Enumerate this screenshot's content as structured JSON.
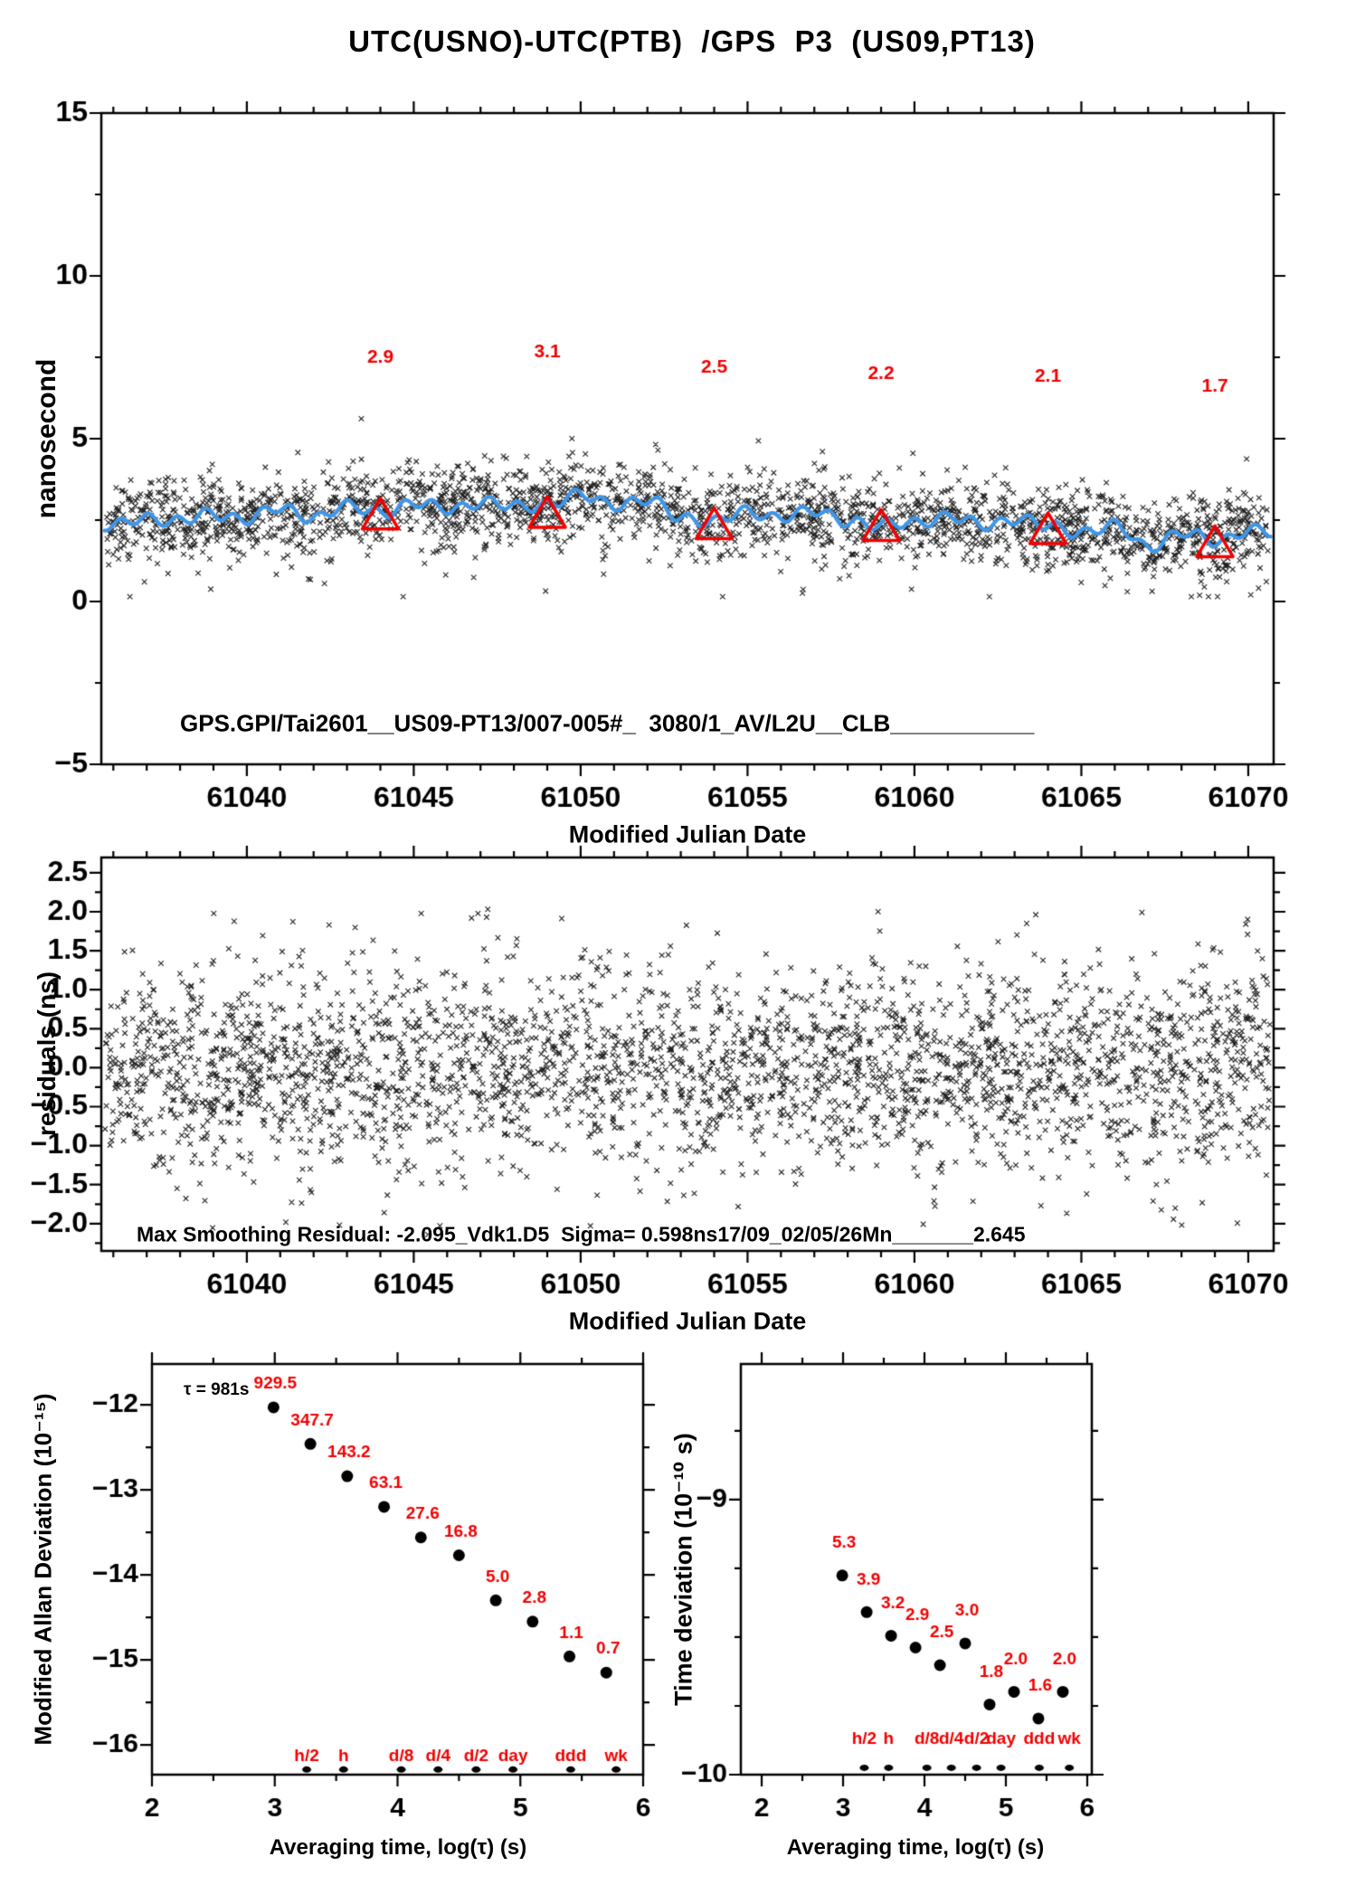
{
  "figure": {
    "title": "UTC(USNO)-UTC(PTB)  /GPS  P3  (US09,PT13)",
    "background": "#ffffff",
    "colors": {
      "data_black": "#000000",
      "smooth_line_blue": "#3f96e8",
      "accent_red": "#f20000"
    }
  },
  "chart_data": [
    {
      "id": "time-transfer-series",
      "type": "scatter",
      "xlabel": "Modified Julian Date",
      "ylabel": "nanosecond",
      "xlim": [
        61035.64,
        61070.76
      ],
      "ylim": [
        -5,
        15
      ],
      "grid": false,
      "x_ticks": {
        "values": [
          61040,
          61045,
          61050,
          61055,
          61060,
          61065,
          61070
        ],
        "labels": [
          "61040",
          "61045",
          "61050",
          "61055",
          "61060",
          "61065",
          "61070"
        ],
        "minor_step": 1
      },
      "y_ticks": {
        "values": [
          -5,
          0,
          5,
          10,
          15
        ],
        "labels": [
          "−5",
          "0",
          "5",
          "10",
          "15"
        ],
        "minor_step": 2.5
      },
      "annotation": {
        "text": "GPS.GPI/Tai2601__US09-PT13/007-005#_  3080/1_AV/L2U__CLB___________",
        "x": 61038.0,
        "y": -3.75
      },
      "scatter_band": {
        "n_points": 2600,
        "sd": 0.62,
        "low_outlier_frac": 0.03,
        "high_outlier_frac": 0.012,
        "clip": [
          0.15,
          5.7
        ],
        "marker": "x"
      },
      "smooth_line": {
        "x": [
          61036,
          61037,
          61038,
          61039,
          61040,
          61041,
          61042,
          61043,
          61044,
          61045,
          61046,
          61047,
          61048,
          61049,
          61050,
          61051,
          61052,
          61053,
          61054,
          61055,
          61056,
          61057,
          61058,
          61059,
          61060,
          61061,
          61062,
          61063,
          61064,
          61065,
          61066,
          61067,
          61068,
          61069,
          61070,
          61071
        ],
        "y": [
          2.3,
          2.6,
          2.45,
          2.7,
          2.55,
          2.85,
          2.6,
          2.9,
          2.75,
          3.0,
          2.85,
          3.05,
          2.9,
          3.0,
          3.25,
          3.0,
          3.1,
          2.6,
          2.45,
          2.75,
          2.6,
          2.75,
          2.5,
          2.3,
          2.45,
          2.6,
          2.35,
          2.55,
          2.3,
          2.15,
          2.3,
          1.7,
          2.1,
          1.85,
          2.2,
          2.05
        ],
        "wiggle_amplitude": 0.16,
        "wiggle_period_days": 0.85
      },
      "calibration_triangles": {
        "x": [
          61044,
          61049,
          61054,
          61059,
          61064,
          61069
        ],
        "y": [
          2.7,
          2.75,
          2.4,
          2.35,
          2.25,
          1.85
        ],
        "labels": [
          "2.9",
          "3.1",
          "2.5",
          "2.2",
          "2.1",
          "1.7"
        ],
        "label_y": [
          7.5,
          7.65,
          7.2,
          7.0,
          6.9,
          6.6
        ]
      }
    },
    {
      "id": "smoothing-residuals",
      "type": "scatter",
      "xlabel": "Modified Julian Date",
      "ylabel": "residuals (ns)",
      "xlim": [
        61035.64,
        61070.76
      ],
      "ylim": [
        -2.35,
        2.696
      ],
      "grid": false,
      "x_ticks": {
        "values": [
          61040,
          61045,
          61050,
          61055,
          61060,
          61065,
          61070
        ],
        "labels": [
          "61040",
          "61045",
          "61050",
          "61055",
          "61060",
          "61065",
          "61070"
        ],
        "minor_step": 1
      },
      "y_ticks": {
        "values": [
          2.5,
          2.0,
          1.5,
          1.0,
          0.5,
          0.0,
          -0.5,
          -1.0,
          -1.5,
          -2.0
        ],
        "labels": [
          "2.5",
          "2.0",
          "1.5",
          "1.0",
          "0.5",
          "0.0",
          "−0.5",
          "−1.0",
          "−1.5",
          "−2.0"
        ],
        "minor_step": 0.25
      },
      "annotation": {
        "text": "Max Smoothing Residual: -2.095_Vdk1.D5  Sigma= 0.598ns17/09_02/05/26Mn_______2.645",
        "x": 61036.7,
        "y": -2.16
      },
      "scatter_band": {
        "n_points": 3100,
        "sd": 0.62,
        "uniform_frac": 0.05,
        "clip": [
          -2.15,
          2.15
        ],
        "marker": "x"
      }
    },
    {
      "id": "modified-allan-deviation",
      "type": "scatter",
      "xlabel": "Averaging time, log(τ) (s)",
      "ylabel": "Modified Allan Deviation (10⁻¹⁵)",
      "xlim": [
        2.0,
        6.0
      ],
      "ylim": [
        -16.35,
        -11.52
      ],
      "grid": false,
      "x_ticks": {
        "values": [
          2,
          3,
          4,
          5,
          6
        ],
        "labels": [
          "2",
          "3",
          "4",
          "5",
          "6"
        ],
        "minor_step": 0.5
      },
      "y_ticks": {
        "values": [
          -12,
          -13,
          -14,
          -15,
          -16
        ],
        "labels": [
          "−12",
          "−13",
          "−14",
          "−15",
          "−16"
        ],
        "minor_step": 0.5
      },
      "note": {
        "text": "τ = 981s",
        "x": 2.26,
        "y": -11.83
      },
      "points": {
        "x": [
          2.99,
          3.29,
          3.59,
          3.89,
          4.19,
          4.5,
          4.8,
          5.1,
          5.4,
          5.7
        ],
        "y": [
          -12.03,
          -12.46,
          -12.84,
          -13.2,
          -13.56,
          -13.77,
          -14.3,
          -14.55,
          -14.96,
          -15.15
        ],
        "value_labels": [
          "929.5",
          "347.7",
          "143.2",
          "63.1",
          "27.6",
          "16.8",
          "5.0",
          "2.8",
          "1.1",
          "0.7"
        ]
      },
      "time_markers": {
        "labels": [
          "h/2",
          "h",
          "d/8",
          "d/4",
          "d/2",
          "day",
          "ddd",
          "wk"
        ],
        "x": [
          3.26,
          3.56,
          4.03,
          4.33,
          4.64,
          4.94,
          5.41,
          5.78
        ],
        "dot_y": -16.29,
        "label_y": -16.14
      }
    },
    {
      "id": "time-deviation",
      "type": "scatter",
      "xlabel": "Averaging time, log(τ) (s)",
      "ylabel": "Time deviation (10⁻¹⁰ s)",
      "xlim": [
        1.744,
        6.056
      ],
      "ylim": [
        -10.0,
        -8.507
      ],
      "grid": false,
      "x_ticks": {
        "values": [
          2,
          3,
          4,
          5,
          6
        ],
        "labels": [
          "2",
          "3",
          "4",
          "5",
          "6"
        ],
        "minor_step": 0.5
      },
      "y_ticks": {
        "values": [
          -9,
          -10
        ],
        "labels": [
          "−9",
          "−10"
        ],
        "minor_step": 0.25
      },
      "points": {
        "x": [
          2.99,
          3.29,
          3.59,
          3.89,
          4.19,
          4.5,
          4.8,
          5.1,
          5.4,
          5.7
        ],
        "y": [
          -9.276,
          -9.409,
          -9.495,
          -9.538,
          -9.602,
          -9.523,
          -9.745,
          -9.699,
          -9.796,
          -9.699
        ],
        "value_labels": [
          "5.3",
          "3.9",
          "3.2",
          "2.9",
          "2.5",
          "3.0",
          "1.8",
          "2.0",
          "1.6",
          "2.0"
        ]
      },
      "time_markers": {
        "labels": [
          "h/2",
          "h",
          "d/8",
          "d/4",
          "d/2",
          "day",
          "ddd",
          "wk"
        ],
        "x": [
          3.26,
          3.56,
          4.03,
          4.33,
          4.64,
          4.94,
          5.41,
          5.78
        ],
        "dot_y": -9.975,
        "label_y": -9.87
      }
    }
  ]
}
